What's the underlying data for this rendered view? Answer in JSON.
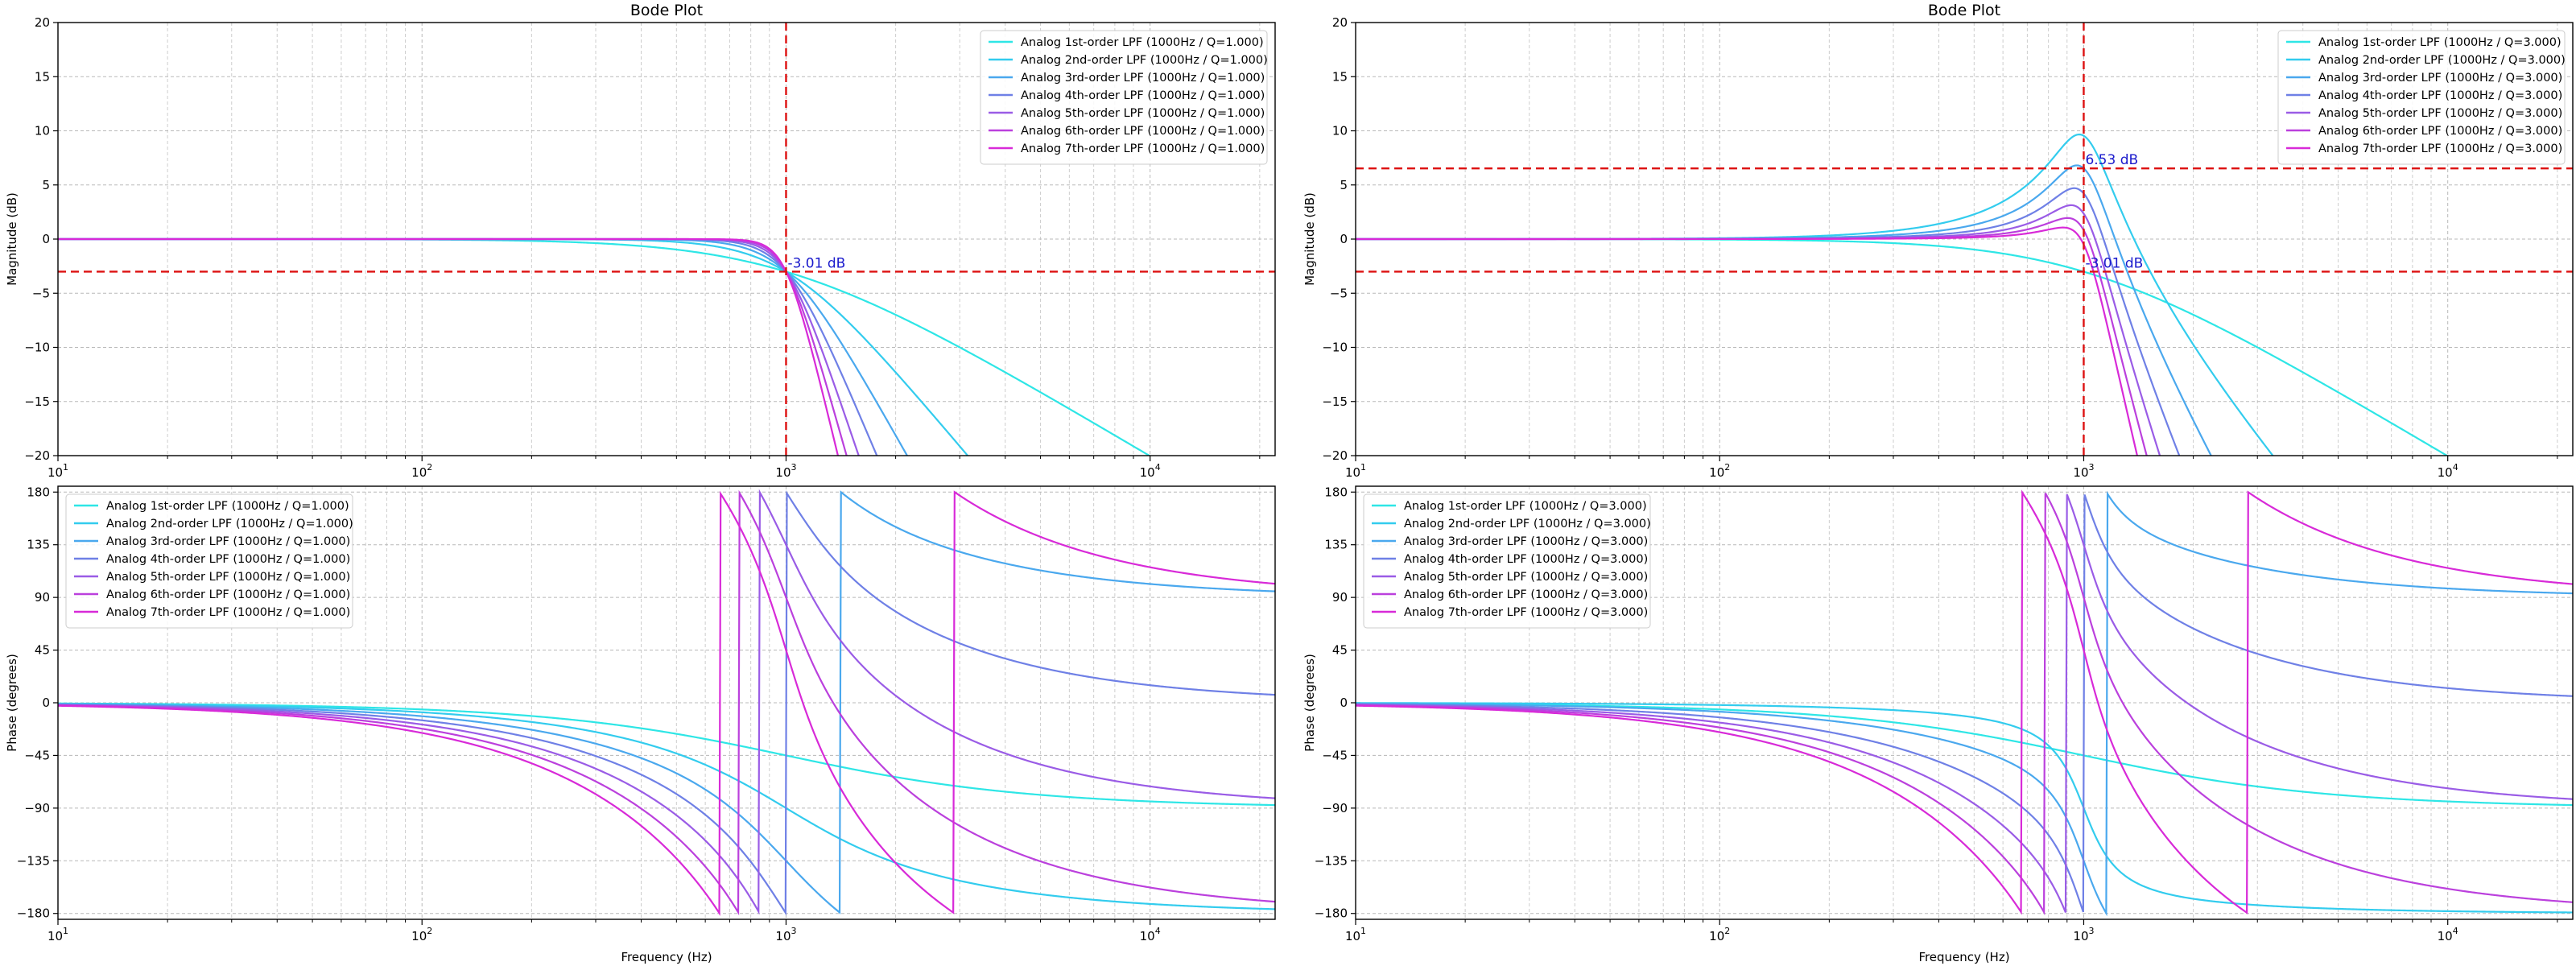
{
  "figure": {
    "colors": {
      "series": [
        "#2ee6e6",
        "#33ccee",
        "#4aa8ee",
        "#6f80e6",
        "#9a5ce6",
        "#bb40dd",
        "#d82ad8"
      ],
      "marker": "#dd1111",
      "marker_text": "#1a1acc",
      "grid": "#b8b8b8",
      "axis": "#000000"
    }
  },
  "chart_data": [
    {
      "id": "mag-q1",
      "type": "line",
      "title": "Bode Plot",
      "xlabel": "",
      "ylabel": "Magnitude (dB)",
      "x_scale": "log",
      "xlim": [
        10,
        22050
      ],
      "ylim": [
        -20,
        20
      ],
      "yticks": [
        20,
        15,
        10,
        5,
        0,
        -5,
        -10,
        -15,
        -20
      ],
      "xticks": [
        {
          "value": 10,
          "base": "10",
          "exp": "1"
        },
        {
          "value": 100,
          "base": "10",
          "exp": "2"
        },
        {
          "value": 1000,
          "base": "10",
          "exp": "3"
        },
        {
          "value": 10000,
          "base": "10",
          "exp": "4"
        }
      ],
      "grid": true,
      "legend": "top-right",
      "quantity": "magnitude",
      "q": 1.0,
      "fc": 1000,
      "series": [
        {
          "name": "Analog 1st-order LPF (1000Hz / Q=1.000)",
          "order": 1
        },
        {
          "name": "Analog 2nd-order LPF (1000Hz / Q=1.000)",
          "order": 2
        },
        {
          "name": "Analog 3rd-order LPF (1000Hz / Q=1.000)",
          "order": 3
        },
        {
          "name": "Analog 4th-order LPF (1000Hz / Q=1.000)",
          "order": 4
        },
        {
          "name": "Analog 5th-order LPF (1000Hz / Q=1.000)",
          "order": 5
        },
        {
          "name": "Analog 6th-order LPF (1000Hz / Q=1.000)",
          "order": 6
        },
        {
          "name": "Analog 7th-order LPF (1000Hz / Q=1.000)",
          "order": 7
        }
      ],
      "reference_lines": {
        "vertical": [
          1000
        ],
        "horizontal": [
          -3.01
        ]
      },
      "annotations": [
        {
          "text": "-3.01 dB",
          "x": 1000,
          "y": -3.01
        }
      ]
    },
    {
      "id": "mag-q3",
      "type": "line",
      "title": "Bode Plot",
      "xlabel": "",
      "ylabel": "Magnitude (dB)",
      "x_scale": "log",
      "xlim": [
        10,
        22050
      ],
      "ylim": [
        -20,
        20
      ],
      "yticks": [
        20,
        15,
        10,
        5,
        0,
        -5,
        -10,
        -15,
        -20
      ],
      "xticks": [
        {
          "value": 10,
          "base": "10",
          "exp": "1"
        },
        {
          "value": 100,
          "base": "10",
          "exp": "2"
        },
        {
          "value": 1000,
          "base": "10",
          "exp": "3"
        },
        {
          "value": 10000,
          "base": "10",
          "exp": "4"
        }
      ],
      "grid": true,
      "legend": "top-right",
      "quantity": "magnitude",
      "q": 3.0,
      "fc": 1000,
      "series": [
        {
          "name": "Analog 1st-order LPF (1000Hz / Q=3.000)",
          "order": 1
        },
        {
          "name": "Analog 2nd-order LPF (1000Hz / Q=3.000)",
          "order": 2
        },
        {
          "name": "Analog 3rd-order LPF (1000Hz / Q=3.000)",
          "order": 3
        },
        {
          "name": "Analog 4th-order LPF (1000Hz / Q=3.000)",
          "order": 4
        },
        {
          "name": "Analog 5th-order LPF (1000Hz / Q=3.000)",
          "order": 5
        },
        {
          "name": "Analog 6th-order LPF (1000Hz / Q=3.000)",
          "order": 6
        },
        {
          "name": "Analog 7th-order LPF (1000Hz / Q=3.000)",
          "order": 7
        }
      ],
      "reference_lines": {
        "vertical": [
          1000
        ],
        "horizontal": [
          6.53,
          -3.01
        ]
      },
      "annotations": [
        {
          "text": "6.53 dB",
          "x": 1000,
          "y": 6.53
        },
        {
          "text": "-3.01 dB",
          "x": 1000,
          "y": -3.01
        }
      ]
    },
    {
      "id": "phase-q1",
      "type": "line",
      "title": "",
      "xlabel": "Frequency (Hz)",
      "ylabel": "Phase (degrees)",
      "x_scale": "log",
      "xlim": [
        10,
        22050
      ],
      "ylim": [
        -185,
        185
      ],
      "yticks": [
        180,
        135,
        90,
        45,
        0,
        -45,
        -90,
        -135,
        -180
      ],
      "xticks": [
        {
          "value": 10,
          "base": "10",
          "exp": "1"
        },
        {
          "value": 100,
          "base": "10",
          "exp": "2"
        },
        {
          "value": 1000,
          "base": "10",
          "exp": "3"
        },
        {
          "value": 10000,
          "base": "10",
          "exp": "4"
        }
      ],
      "grid": true,
      "legend": "top-left",
      "quantity": "phase",
      "q": 1.0,
      "fc": 1000,
      "series": [
        {
          "name": "Analog 1st-order LPF (1000Hz / Q=1.000)",
          "order": 1
        },
        {
          "name": "Analog 2nd-order LPF (1000Hz / Q=1.000)",
          "order": 2
        },
        {
          "name": "Analog 3rd-order LPF (1000Hz / Q=1.000)",
          "order": 3
        },
        {
          "name": "Analog 4th-order LPF (1000Hz / Q=1.000)",
          "order": 4
        },
        {
          "name": "Analog 5th-order LPF (1000Hz / Q=1.000)",
          "order": 5
        },
        {
          "name": "Analog 6th-order LPF (1000Hz / Q=1.000)",
          "order": 6
        },
        {
          "name": "Analog 7th-order LPF (1000Hz / Q=1.000)",
          "order": 7
        }
      ],
      "reference_lines": {
        "vertical": [],
        "horizontal": []
      },
      "annotations": []
    },
    {
      "id": "phase-q3",
      "type": "line",
      "title": "",
      "xlabel": "Frequency (Hz)",
      "ylabel": "Phase (degrees)",
      "x_scale": "log",
      "xlim": [
        10,
        22050
      ],
      "ylim": [
        -185,
        185
      ],
      "yticks": [
        180,
        135,
        90,
        45,
        0,
        -45,
        -90,
        -135,
        -180
      ],
      "xticks": [
        {
          "value": 10,
          "base": "10",
          "exp": "1"
        },
        {
          "value": 100,
          "base": "10",
          "exp": "2"
        },
        {
          "value": 1000,
          "base": "10",
          "exp": "3"
        },
        {
          "value": 10000,
          "base": "10",
          "exp": "4"
        }
      ],
      "grid": true,
      "legend": "top-left",
      "quantity": "phase",
      "q": 3.0,
      "fc": 1000,
      "series": [
        {
          "name": "Analog 1st-order LPF (1000Hz / Q=3.000)",
          "order": 1
        },
        {
          "name": "Analog 2nd-order LPF (1000Hz / Q=3.000)",
          "order": 2
        },
        {
          "name": "Analog 3rd-order LPF (1000Hz / Q=3.000)",
          "order": 3
        },
        {
          "name": "Analog 4th-order LPF (1000Hz / Q=3.000)",
          "order": 4
        },
        {
          "name": "Analog 5th-order LPF (1000Hz / Q=3.000)",
          "order": 5
        },
        {
          "name": "Analog 6th-order LPF (1000Hz / Q=3.000)",
          "order": 6
        },
        {
          "name": "Analog 7th-order LPF (1000Hz / Q=3.000)",
          "order": 7
        }
      ],
      "reference_lines": {
        "vertical": [],
        "horizontal": []
      },
      "annotations": []
    }
  ]
}
